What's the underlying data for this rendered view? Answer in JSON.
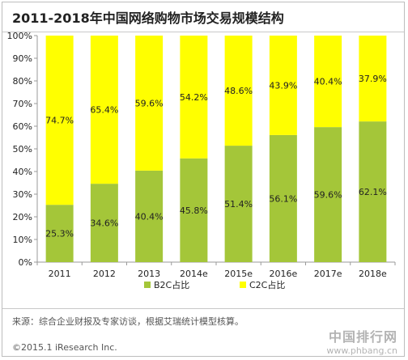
{
  "title": "2011-2018年中国网络购物市场交易规模结构",
  "source_text": "来源：综合企业财报及专家访谈，根据艾瑞统计模型核算。",
  "copyright_text": "©2015.1 iResearch Inc.",
  "watermark": {
    "name": "中国排行网",
    "url": "www.phbang.cn"
  },
  "colors": {
    "b2c": "#a4c639",
    "c2c": "#ffff00",
    "axis": "#999999"
  },
  "chart_data": {
    "type": "bar",
    "stacked": true,
    "categories": [
      "2011",
      "2012",
      "2013",
      "2014e",
      "2015e",
      "2016e",
      "2017e",
      "2018e"
    ],
    "series": [
      {
        "name": "B2C占比",
        "values": [
          25.3,
          34.6,
          40.4,
          45.8,
          51.4,
          56.1,
          59.6,
          62.1
        ]
      },
      {
        "name": "C2C占比",
        "values": [
          74.7,
          65.4,
          59.6,
          54.2,
          48.6,
          43.9,
          40.4,
          37.9
        ]
      }
    ],
    "value_suffix": "%",
    "ylim": [
      0,
      100
    ],
    "yticks": [
      "0%",
      "10%",
      "20%",
      "30%",
      "40%",
      "50%",
      "60%",
      "70%",
      "80%",
      "90%",
      "100%"
    ],
    "legend_position": "bottom",
    "grid": false
  }
}
